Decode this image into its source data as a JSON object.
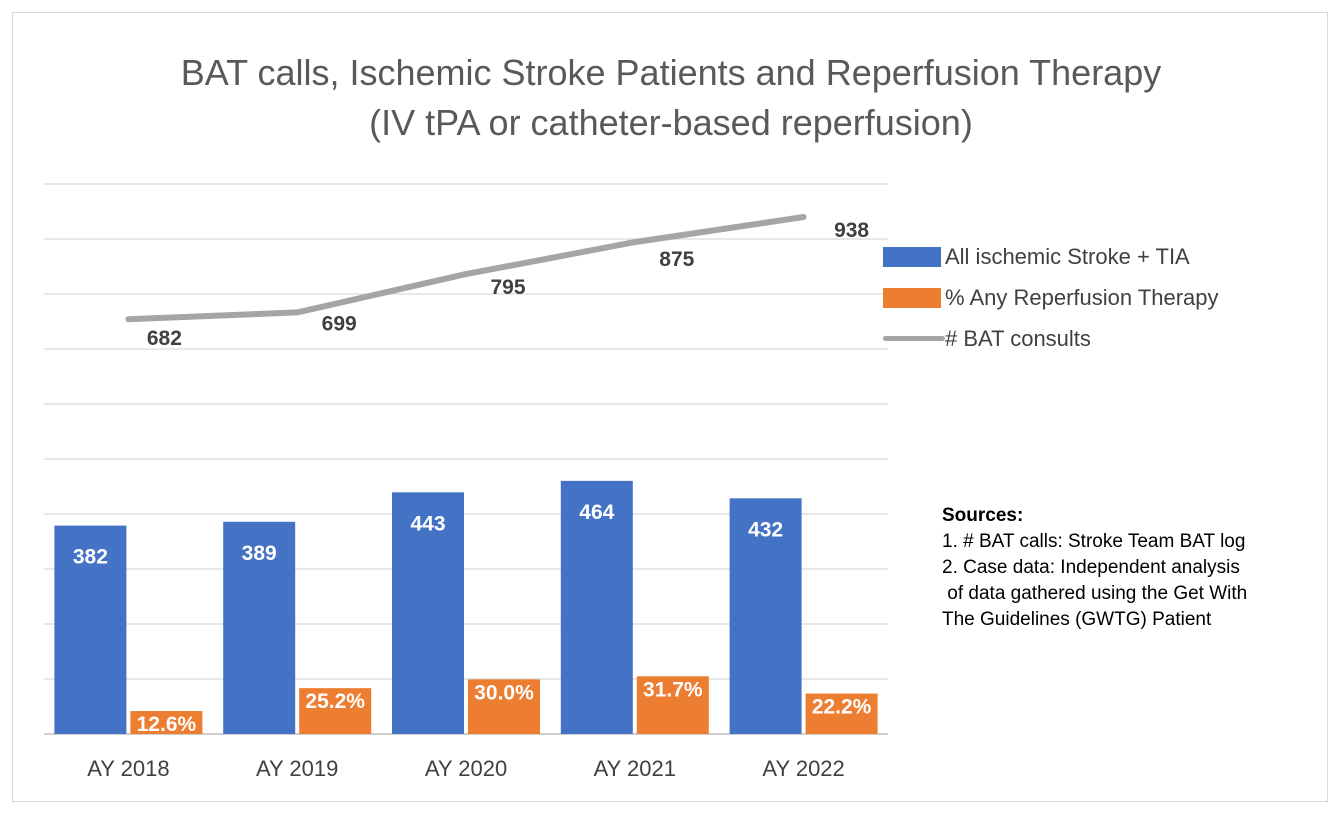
{
  "chart_data": {
    "type": "bar",
    "title": "BAT calls, Ischemic Stroke Patients and Reperfusion Therapy",
    "subtitle": "(IV tPA or catheter-based reperfusion)",
    "categories": [
      "AY 2018",
      "AY 2019",
      "AY 2020",
      "AY 2021",
      "AY 2022"
    ],
    "series": [
      {
        "name": "All ischemic Stroke + TIA",
        "kind": "bar",
        "color": "#4472c4",
        "values": [
          382,
          389,
          443,
          464,
          432
        ],
        "labels": [
          "382",
          "389",
          "443",
          "464",
          "432"
        ]
      },
      {
        "name": "% Any Reperfusion Therapy",
        "kind": "bar",
        "color": "#ed7d31",
        "values": [
          12.6,
          25.2,
          30.0,
          31.7,
          22.2
        ],
        "labels": [
          "12.6%",
          "25.2%",
          "30.0%",
          "31.7%",
          "22.2%"
        ]
      },
      {
        "name": "# BAT consults",
        "kind": "line",
        "color": "#a5a5a5",
        "values": [
          682,
          699,
          795,
          875,
          938
        ],
        "labels": [
          "682",
          "699",
          "795",
          "875",
          "938"
        ]
      }
    ],
    "grid": true,
    "legend_position": "right"
  },
  "sources": {
    "heading": "Sources:",
    "lines": [
      "1. # BAT calls: Stroke Team BAT log",
      "2. Case data: Independent analysis",
      " of data gathered using the Get With",
      "The Guidelines (GWTG) Patient"
    ]
  }
}
